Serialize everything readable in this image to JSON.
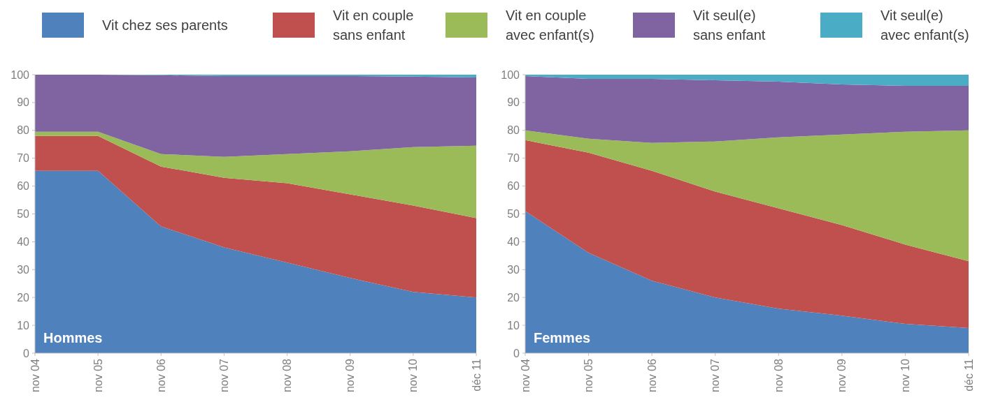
{
  "chart_data": [
    {
      "type": "area",
      "title": "Hommes",
      "stacked": true,
      "legend": "top",
      "categories": [
        "nov 04",
        "nov 05",
        "nov 06",
        "nov 07",
        "nov 08",
        "nov 09",
        "nov 10",
        "déc 11"
      ],
      "ylim": [
        0,
        100
      ],
      "yticks": [
        0,
        10,
        20,
        30,
        40,
        50,
        60,
        70,
        80,
        90,
        100
      ],
      "series": [
        {
          "name": "Vit chez ses parents",
          "color": "#4f81bd",
          "values": [
            65.5,
            65.5,
            45.5,
            38,
            32.5,
            27,
            22,
            20
          ]
        },
        {
          "name": "Vit en couple sans enfant",
          "color": "#c0504d",
          "values": [
            12.5,
            12.5,
            21.5,
            25,
            28.5,
            30,
            31,
            28.5
          ]
        },
        {
          "name": "Vit en couple avec enfant(s)",
          "color": "#9bbb59",
          "values": [
            1.5,
            1.5,
            4.5,
            7.5,
            10.5,
            15.5,
            21,
            26
          ]
        },
        {
          "name": "Vit seul(e) sans enfant",
          "color": "#8064a2",
          "values": [
            20.5,
            20.5,
            28.3,
            29,
            28,
            27,
            25.3,
            24.5
          ]
        },
        {
          "name": "Vit seul(e) avec enfant(s)",
          "color": "#4bacc6",
          "values": [
            0,
            0,
            0.2,
            0.5,
            0.5,
            0.5,
            0.7,
            1
          ]
        }
      ]
    },
    {
      "type": "area",
      "title": "Femmes",
      "stacked": true,
      "categories": [
        "nov 04",
        "nov 05",
        "nov 06",
        "nov 07",
        "nov 08",
        "nov 09",
        "nov 10",
        "déc 11"
      ],
      "ylim": [
        0,
        100
      ],
      "yticks": [
        0,
        10,
        20,
        30,
        40,
        50,
        60,
        70,
        80,
        90,
        100
      ],
      "series": [
        {
          "color": "#4f81bd",
          "values": [
            51,
            36,
            26,
            20,
            16,
            13.5,
            10.5,
            9
          ]
        },
        {
          "color": "#c0504d",
          "values": [
            25.5,
            36,
            39.5,
            38,
            36,
            32.5,
            28.5,
            24
          ]
        },
        {
          "color": "#9bbb59",
          "values": [
            3.5,
            5,
            10,
            18,
            25.5,
            32.5,
            40.5,
            47
          ]
        },
        {
          "color": "#8064a2",
          "values": [
            19.5,
            21.5,
            23,
            22,
            20,
            18,
            16.5,
            16
          ]
        },
        {
          "color": "#4bacc6",
          "values": [
            0.5,
            1.5,
            1.5,
            2,
            2.5,
            3.5,
            4,
            4
          ]
        }
      ]
    }
  ]
}
